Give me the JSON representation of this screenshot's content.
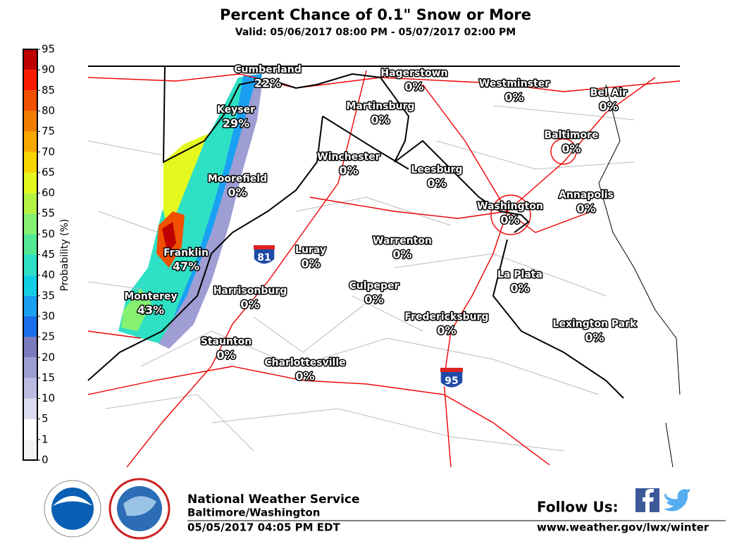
{
  "header": {
    "title": "Percent Chance of 0.1\" Snow or More",
    "subtitle": "Valid: 05/06/2017 08:00 PM - 05/07/2017 02:00 PM"
  },
  "colorbar": {
    "label": "Probability (%)",
    "ticks": [
      0,
      1,
      5,
      10,
      15,
      20,
      25,
      30,
      35,
      40,
      45,
      50,
      55,
      60,
      65,
      70,
      75,
      80,
      85,
      90,
      95
    ],
    "colors": [
      "#f4f4f4",
      "#ffffff",
      "#dcdcf0",
      "#bcbce2",
      "#9e9ed4",
      "#7a7abd",
      "#1a6ee8",
      "#1aa0f2",
      "#12cfe6",
      "#2ee0c4",
      "#52e894",
      "#86f070",
      "#b6f244",
      "#e4f820",
      "#f8d400",
      "#f8a800",
      "#f07c00",
      "#f05000",
      "#f81c00",
      "#c00000"
    ]
  },
  "cities": [
    {
      "name": "Cumberland",
      "value": "22%"
    },
    {
      "name": "Hagerstown",
      "value": "0%"
    },
    {
      "name": "Westminster",
      "value": "0%"
    },
    {
      "name": "Bel Air",
      "value": "0%"
    },
    {
      "name": "Martinsburg",
      "value": "0%"
    },
    {
      "name": "Keyser",
      "value": "29%"
    },
    {
      "name": "Baltimore",
      "value": "0%"
    },
    {
      "name": "Winchester",
      "value": "0%"
    },
    {
      "name": "Leesburg",
      "value": "0%"
    },
    {
      "name": "Moorefield",
      "value": "0%"
    },
    {
      "name": "Annapolis",
      "value": "0%"
    },
    {
      "name": "Washington",
      "value": "0%"
    },
    {
      "name": "Warrenton",
      "value": "0%"
    },
    {
      "name": "Luray",
      "value": "0%"
    },
    {
      "name": "Franklin",
      "value": "47%"
    },
    {
      "name": "La Plata",
      "value": "0%"
    },
    {
      "name": "Culpeper",
      "value": "0%"
    },
    {
      "name": "Harrisonburg",
      "value": "0%"
    },
    {
      "name": "Monterey",
      "value": "43%"
    },
    {
      "name": "Fredericksburg",
      "value": "0%"
    },
    {
      "name": "Lexington Park",
      "value": "0%"
    },
    {
      "name": "Staunton",
      "value": "0%"
    },
    {
      "name": "Charlottesville",
      "value": "0%"
    }
  ],
  "highways": [
    "81",
    "95"
  ],
  "footer": {
    "agency": "National Weather Service",
    "office": "Baltimore/Washington",
    "issued": "05/05/2017 04:05 PM EDT",
    "follow": "Follow Us:",
    "url": "www.weather.gov/lwx/winter"
  }
}
